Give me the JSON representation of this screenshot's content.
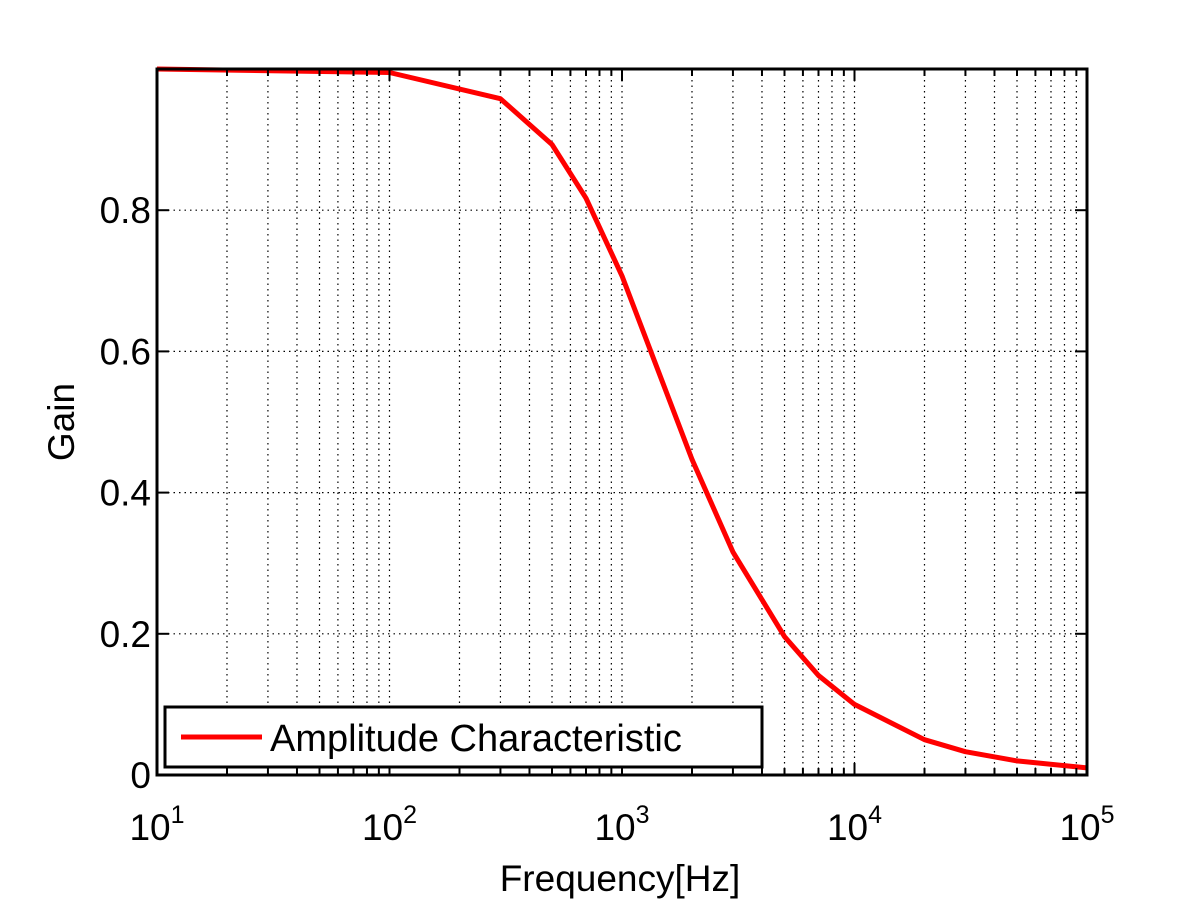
{
  "chart_data": {
    "type": "line",
    "xlabel": "Frequency[Hz]",
    "ylabel": "Gain",
    "x_scale": "log",
    "xlim": [
      10,
      100000
    ],
    "ylim": [
      0,
      1
    ],
    "grid": true,
    "legend_position": "bottom-left",
    "x_ticks": [
      {
        "value": 10,
        "base": "10",
        "exp": "1"
      },
      {
        "value": 100,
        "base": "10",
        "exp": "2"
      },
      {
        "value": 1000,
        "base": "10",
        "exp": "3"
      },
      {
        "value": 10000,
        "base": "10",
        "exp": "4"
      },
      {
        "value": 100000,
        "base": "10",
        "exp": "5"
      }
    ],
    "y_ticks": [
      {
        "value": 0,
        "label": "0"
      },
      {
        "value": 0.2,
        "label": "0.2"
      },
      {
        "value": 0.4,
        "label": "0.4"
      },
      {
        "value": 0.6,
        "label": "0.6"
      },
      {
        "value": 0.8,
        "label": "0.8"
      }
    ],
    "series": [
      {
        "name": "Amplitude Characteristic",
        "color": "#ff0000",
        "x": [
          10,
          100,
          300,
          500,
          700,
          1000,
          2000,
          3000,
          5000,
          7000,
          10000,
          20000,
          30000,
          50000,
          100000
        ],
        "y": [
          1.0,
          0.995,
          0.958,
          0.893,
          0.817,
          0.707,
          0.447,
          0.316,
          0.196,
          0.141,
          0.1,
          0.05,
          0.033,
          0.02,
          0.01
        ]
      }
    ]
  }
}
